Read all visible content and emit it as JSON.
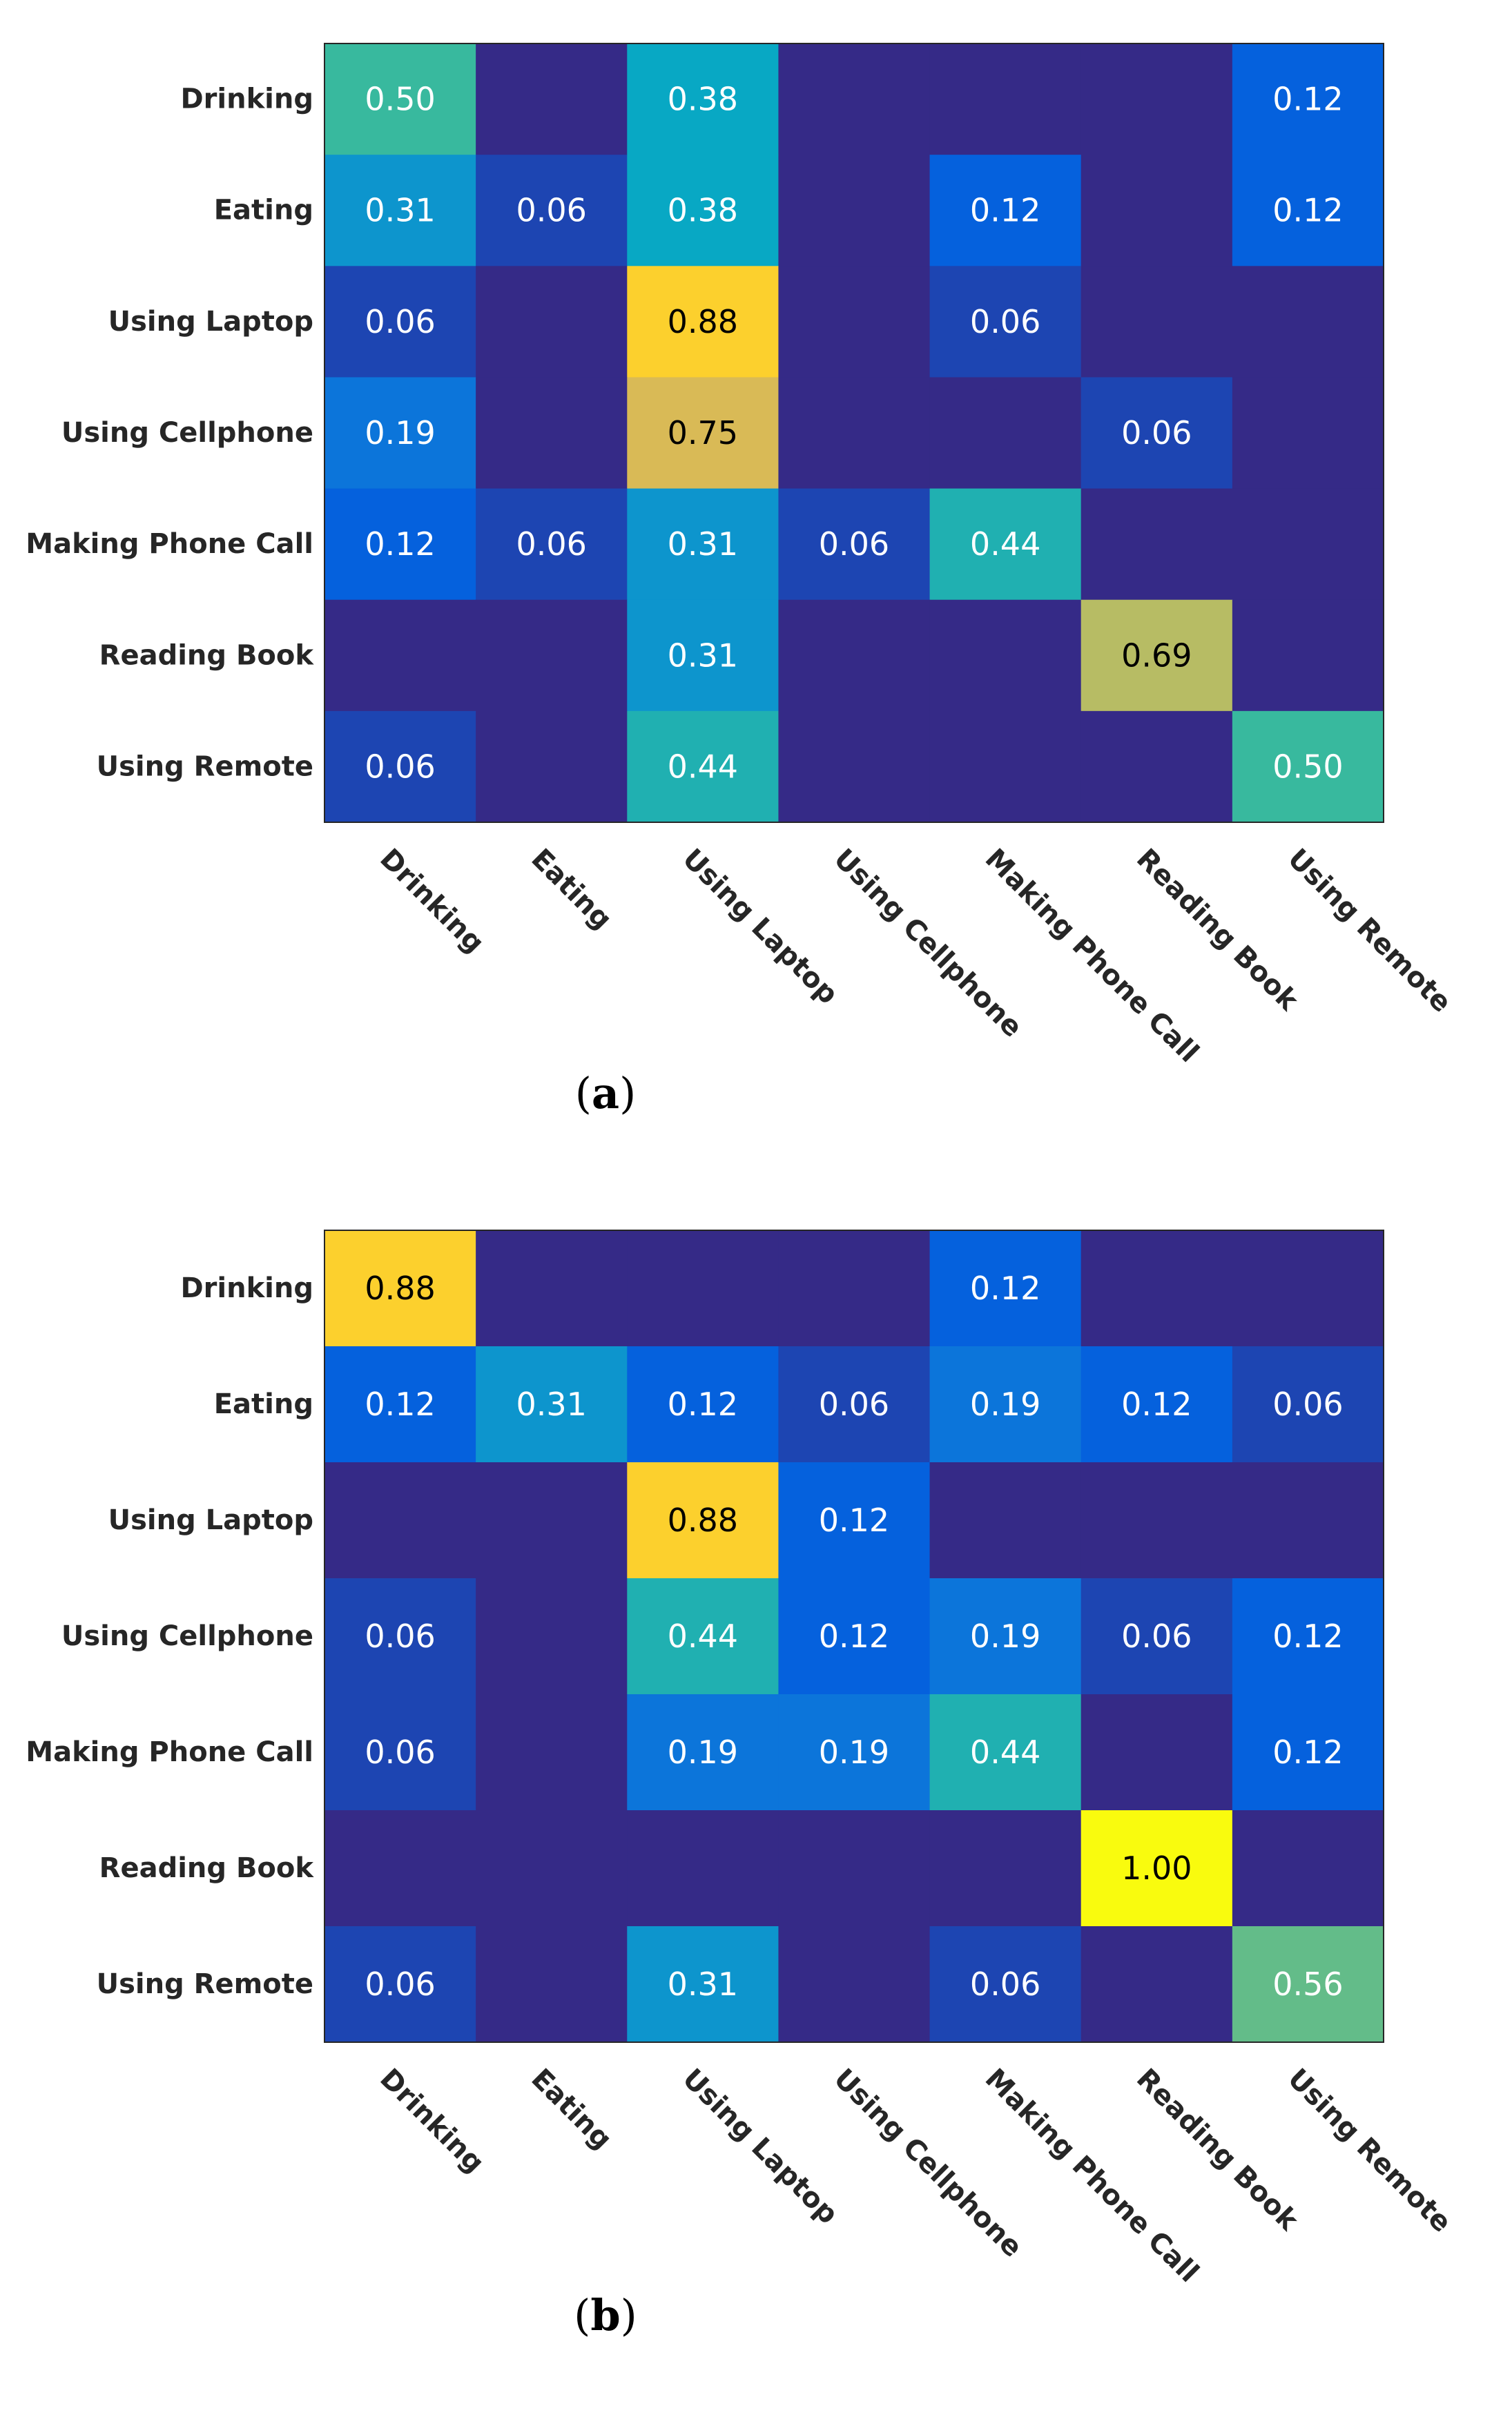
{
  "chart_data": [
    {
      "type": "heatmap",
      "caption_letter": "a",
      "row_labels": [
        "Drinking",
        "Eating",
        "Using Laptop",
        "Using Cellphone",
        "Making Phone Call",
        "Reading Book",
        "Using Remote"
      ],
      "col_labels": [
        "Drinking",
        "Eating",
        "Using Laptop",
        "Using Cellphone",
        "Making Phone Call",
        "Reading Book",
        "Using Remote"
      ],
      "values": [
        [
          0.5,
          0,
          0.38,
          0,
          0,
          0,
          0.12
        ],
        [
          0.31,
          0.06,
          0.38,
          0,
          0.12,
          0,
          0.12
        ],
        [
          0.06,
          0,
          0.88,
          0,
          0.06,
          0,
          0
        ],
        [
          0.19,
          0,
          0.75,
          0,
          0,
          0.06,
          0
        ],
        [
          0.12,
          0.06,
          0.31,
          0.06,
          0.44,
          0,
          0
        ],
        [
          0,
          0,
          0.31,
          0,
          0,
          0.69,
          0
        ],
        [
          0.06,
          0,
          0.44,
          0,
          0,
          0,
          0.5
        ]
      ],
      "value_range": [
        0,
        1
      ],
      "hide_zero_labels": true,
      "colormap": "parula"
    },
    {
      "type": "heatmap",
      "caption_letter": "b",
      "row_labels": [
        "Drinking",
        "Eating",
        "Using Laptop",
        "Using Cellphone",
        "Making Phone Call",
        "Reading Book",
        "Using Remote"
      ],
      "col_labels": [
        "Drinking",
        "Eating",
        "Using Laptop",
        "Using Cellphone",
        "Making Phone Call",
        "Reading Book",
        "Using Remote"
      ],
      "values": [
        [
          0.88,
          0,
          0,
          0,
          0.12,
          0,
          0
        ],
        [
          0.12,
          0.31,
          0.12,
          0.06,
          0.19,
          0.12,
          0.06
        ],
        [
          0,
          0,
          0.88,
          0.12,
          0,
          0,
          0
        ],
        [
          0.06,
          0,
          0.44,
          0.12,
          0.19,
          0.06,
          0.12
        ],
        [
          0.06,
          0,
          0.19,
          0.19,
          0.44,
          0,
          0.12
        ],
        [
          0,
          0,
          0,
          0,
          0,
          1.0,
          0
        ],
        [
          0.06,
          0,
          0.31,
          0,
          0.06,
          0,
          0.56
        ]
      ],
      "value_range": [
        0,
        1
      ],
      "hide_zero_labels": true,
      "colormap": "parula"
    }
  ],
  "colors": {
    "parula_stops": [
      "#352a87",
      "#0363e1",
      "#1485d4",
      "#06a7c6",
      "#38b99e",
      "#92bf73",
      "#d9ba56",
      "#fcce2e",
      "#f9fb0e"
    ],
    "label_text": "#262626",
    "cell_text_light": "#ffffff",
    "cell_text_dark": "#000000"
  }
}
